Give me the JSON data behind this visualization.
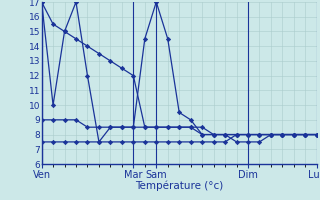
{
  "background_color": "#cce8e8",
  "grid_color": "#aacccc",
  "line_color": "#1a3399",
  "marker_color": "#1a3399",
  "xlabel": "Température (°c)",
  "ylim": [
    6,
    17
  ],
  "yticks": [
    6,
    7,
    8,
    9,
    10,
    11,
    12,
    13,
    14,
    15,
    16,
    17
  ],
  "xtick_labels": [
    "Ven",
    "Mar",
    "Sam",
    "Dim",
    "Lun"
  ],
  "xtick_positions": [
    0,
    8,
    10,
    18,
    24
  ],
  "vline_positions": [
    0,
    8,
    10,
    18,
    24
  ],
  "x_total": 24,
  "series": [
    [
      17,
      15.5,
      15,
      14.5,
      14,
      13.5,
      13,
      12.5,
      12,
      8.5,
      8.5,
      8.5,
      8.5,
      8.5,
      8.5,
      8,
      8,
      8,
      8,
      8,
      8,
      8,
      8,
      8,
      8
    ],
    [
      17,
      10,
      15,
      17,
      12,
      7.5,
      8.5,
      8.5,
      8.5,
      14.5,
      17,
      14.5,
      9.5,
      9,
      8,
      8,
      8,
      8,
      8,
      8,
      8,
      8,
      8,
      8,
      8
    ],
    [
      9,
      9,
      9,
      9,
      8.5,
      8.5,
      8.5,
      8.5,
      8.5,
      8.5,
      8.5,
      8.5,
      8.5,
      8.5,
      8,
      8,
      8,
      7.5,
      7.5,
      7.5,
      8,
      8,
      8,
      8,
      8
    ],
    [
      7.5,
      7.5,
      7.5,
      7.5,
      7.5,
      7.5,
      7.5,
      7.5,
      7.5,
      7.5,
      7.5,
      7.5,
      7.5,
      7.5,
      7.5,
      7.5,
      7.5,
      8,
      8,
      8,
      8,
      8,
      8,
      8,
      8
    ]
  ]
}
